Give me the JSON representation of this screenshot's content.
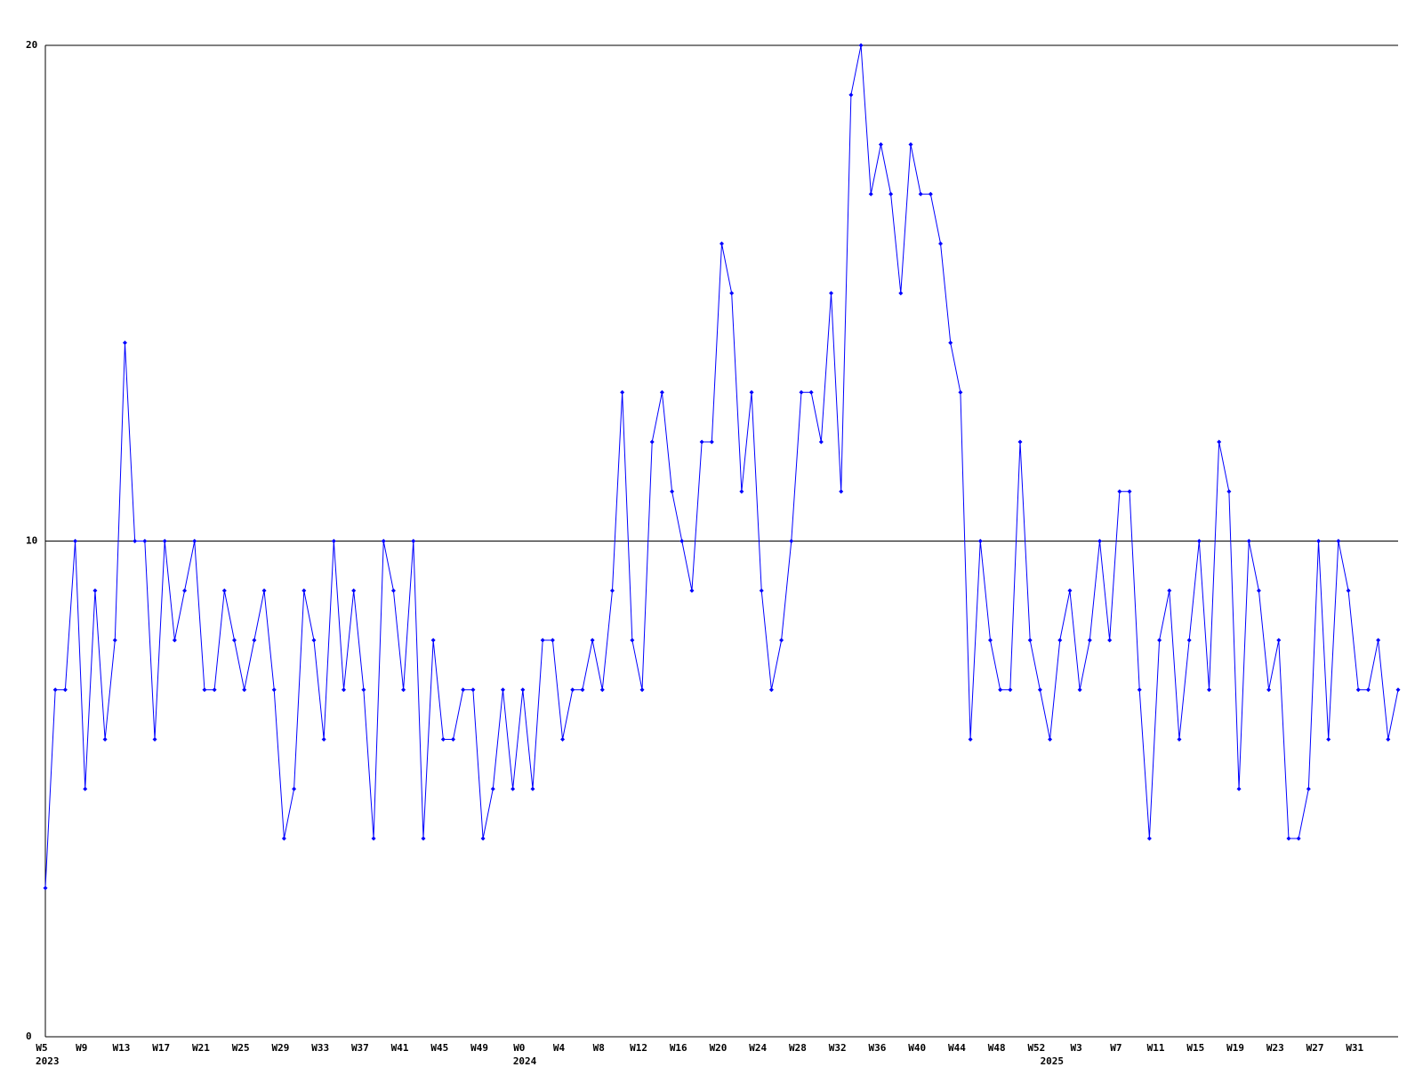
{
  "chart_data": {
    "type": "line",
    "color": "#0000ff",
    "grid": true,
    "ylim": [
      0,
      20
    ],
    "yticks": [
      0,
      10,
      20
    ],
    "categories": [
      "W5",
      null,
      null,
      null,
      "W9",
      null,
      null,
      null,
      "W13",
      null,
      null,
      null,
      "W17",
      null,
      null,
      null,
      "W21",
      null,
      null,
      null,
      "W25",
      null,
      null,
      null,
      "W29",
      null,
      null,
      null,
      "W33",
      null,
      null,
      null,
      "W37",
      null,
      null,
      null,
      "W41",
      null,
      null,
      null,
      "W45",
      null,
      null,
      null,
      "W49",
      null,
      null,
      null,
      "W0",
      null,
      null,
      null,
      "W4",
      null,
      null,
      null,
      "W8",
      null,
      null,
      null,
      "W12",
      null,
      null,
      null,
      "W16",
      null,
      null,
      null,
      "W20",
      null,
      null,
      null,
      "W24",
      null,
      null,
      null,
      "W28",
      null,
      null,
      null,
      "W32",
      null,
      null,
      null,
      "W36",
      null,
      null,
      null,
      "W40",
      null,
      null,
      null,
      "W44",
      null,
      null,
      null,
      "W48",
      null,
      null,
      null,
      "W52",
      null,
      null,
      null,
      "W3",
      null,
      null,
      null,
      "W7",
      null,
      null,
      null,
      "W11",
      null,
      null,
      null,
      "W15",
      null,
      null,
      null,
      "W19",
      null,
      null,
      null,
      "W23",
      null,
      null,
      null,
      "W27",
      null,
      null,
      null,
      "W31",
      null,
      null,
      null,
      null
    ],
    "category_years": [
      "2023",
      null,
      null,
      null,
      null,
      null,
      null,
      null,
      null,
      null,
      null,
      null,
      null,
      null,
      null,
      null,
      null,
      null,
      null,
      null,
      null,
      null,
      null,
      null,
      null,
      null,
      null,
      null,
      null,
      null,
      null,
      null,
      null,
      null,
      null,
      null,
      null,
      null,
      null,
      null,
      null,
      null,
      null,
      null,
      null,
      null,
      null,
      null,
      "2024",
      null,
      null,
      null,
      null,
      null,
      null,
      null,
      null,
      null,
      null,
      null,
      null,
      null,
      null,
      null,
      null,
      null,
      null,
      null,
      null,
      null,
      null,
      null,
      null,
      null,
      null,
      null,
      null,
      null,
      null,
      null,
      null,
      null,
      null,
      null,
      null,
      null,
      null,
      null,
      null,
      null,
      null,
      null,
      null,
      null,
      null,
      null,
      null,
      null,
      null,
      null,
      null,
      "2025",
      null,
      null,
      null,
      null,
      null,
      null,
      null,
      null,
      null,
      null,
      null,
      null,
      null,
      null,
      null,
      null,
      null,
      null,
      null,
      null,
      null,
      null,
      null,
      null,
      null,
      null,
      null,
      null,
      null,
      null,
      null,
      null,
      null,
      null
    ],
    "values": [
      3,
      7,
      7,
      10,
      5,
      9,
      6,
      8,
      14,
      10,
      10,
      6,
      10,
      8,
      9,
      10,
      7,
      7,
      9,
      8,
      7,
      8,
      9,
      7,
      4,
      5,
      9,
      8,
      6,
      10,
      7,
      9,
      7,
      4,
      10,
      9,
      7,
      10,
      4,
      8,
      6,
      6,
      7,
      7,
      4,
      5,
      7,
      5,
      7,
      5,
      8,
      8,
      6,
      7,
      7,
      8,
      7,
      9,
      13,
      8,
      7,
      12,
      13,
      11,
      10,
      9,
      12,
      12,
      16,
      15,
      11,
      13,
      9,
      7,
      8,
      10,
      13,
      13,
      12,
      15,
      11,
      19,
      20,
      17,
      18,
      17,
      15,
      18,
      17,
      17,
      16,
      14,
      13,
      6,
      10,
      8,
      7,
      7,
      12,
      8,
      7,
      6,
      8,
      9,
      7,
      8,
      10,
      8,
      11,
      11,
      7,
      4,
      8,
      9,
      6,
      8,
      10,
      7,
      12,
      11,
      5,
      10,
      9,
      7,
      8,
      4,
      4,
      5,
      10,
      6,
      10,
      9,
      7,
      7,
      8,
      6,
      7
    ]
  }
}
